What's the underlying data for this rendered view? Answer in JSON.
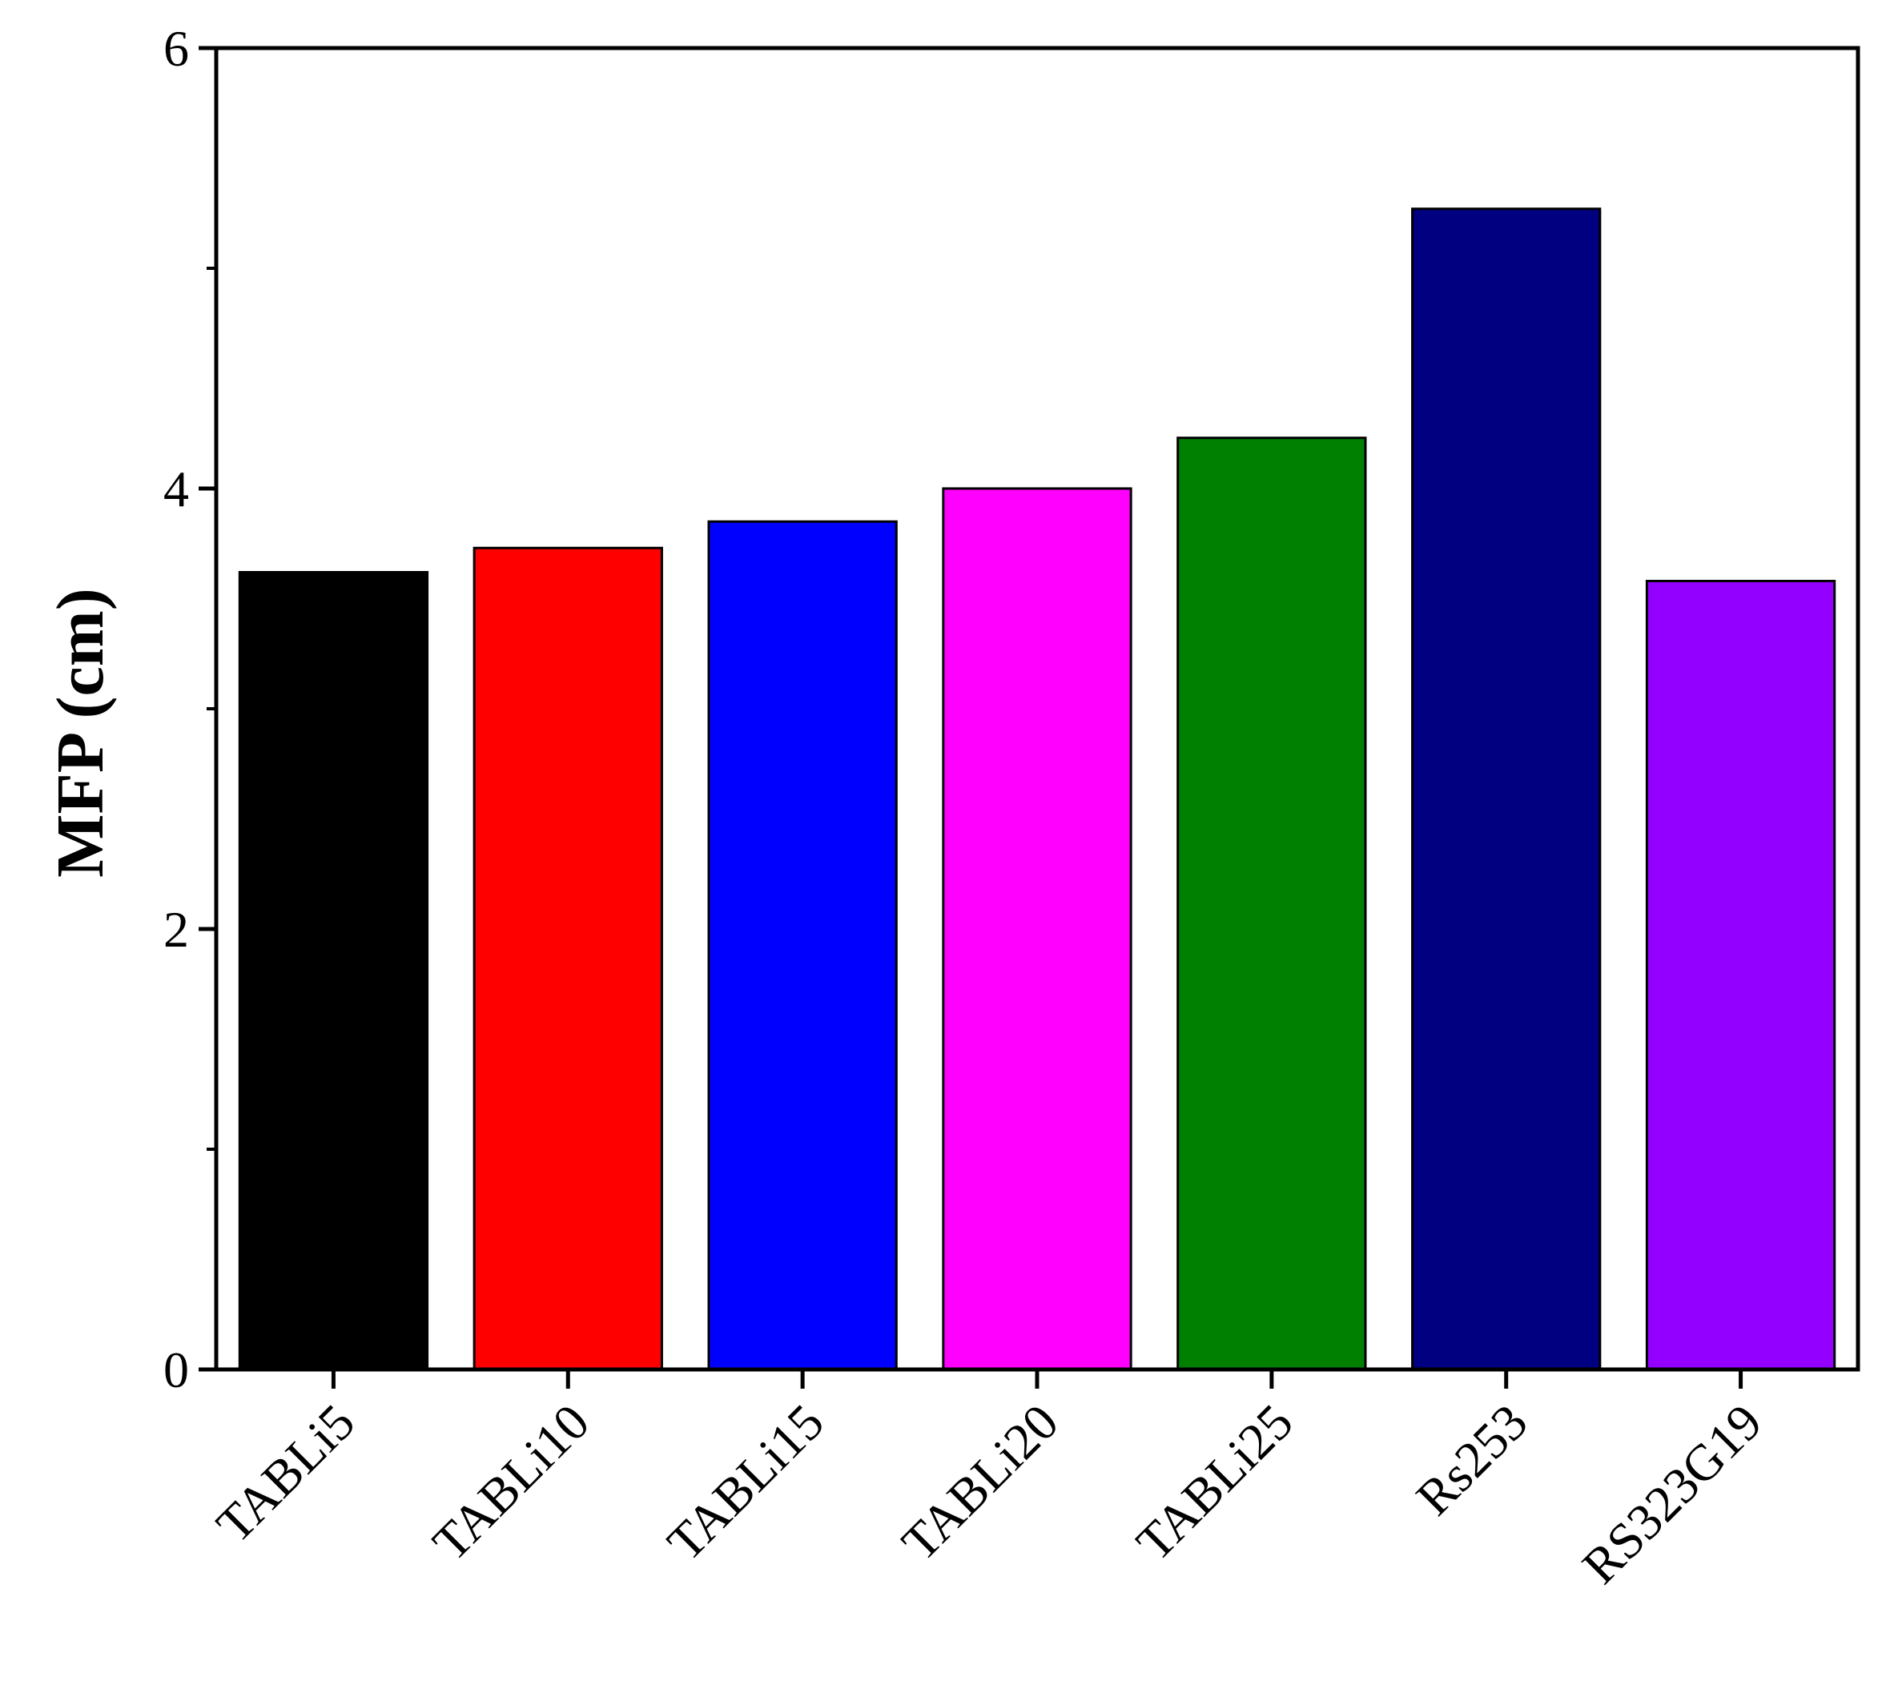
{
  "chart_data": {
    "type": "bar",
    "title": "",
    "xlabel": "",
    "ylabel": "MFP (cm)",
    "ylim": [
      0,
      6
    ],
    "yticks": [
      "0",
      "2",
      "4",
      "6"
    ],
    "grid": false,
    "categories": [
      "TABLi5",
      "TABLi10",
      "TABLi15",
      "TABLi20",
      "TABLi25",
      "Rs253",
      "RS323G19"
    ],
    "values": [
      3.62,
      3.73,
      3.85,
      4.0,
      4.23,
      5.27,
      3.58
    ],
    "colors": [
      "#000000",
      "#ff0000",
      "#0000ff",
      "#ff00ff",
      "#008000",
      "#000080",
      "#9400ff"
    ]
  }
}
